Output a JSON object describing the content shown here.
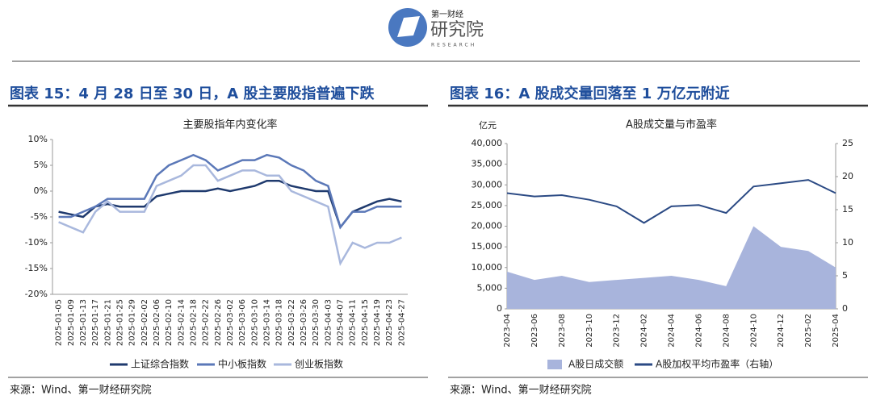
{
  "header": {
    "logo_top": "第一财经",
    "logo_main": "研究院",
    "logo_sub": "RESEARCH"
  },
  "chart_data": [
    {
      "type": "line",
      "caption": "图表 15：4 月 28 日至 30 日，A 股主要股指普遍下跌",
      "title": "主要股指年内变化率",
      "source": "来源：Wind、第一财经研究院",
      "categories": [
        "2025-01-05",
        "2025-01-09",
        "2025-01-13",
        "2025-01-17",
        "2025-01-21",
        "2025-01-25",
        "2025-01-29",
        "2025-02-02",
        "2025-02-06",
        "2025-02-10",
        "2025-02-14",
        "2025-02-18",
        "2025-02-22",
        "2025-02-26",
        "2025-03-02",
        "2025-03-06",
        "2025-03-10",
        "2025-03-14",
        "2025-03-18",
        "2025-03-22",
        "2025-03-26",
        "2025-03-30",
        "2025-04-03",
        "2025-04-07",
        "2025-04-11",
        "2025-04-15",
        "2025-04-19",
        "2025-04-23",
        "2025-04-27"
      ],
      "series": [
        {
          "name": "上证综合指数",
          "color": "#1f3a6e",
          "values": [
            -4,
            -4.5,
            -5,
            -3,
            -2.5,
            -3,
            -3,
            -3,
            -1,
            -0.5,
            0,
            0,
            0,
            0.5,
            0,
            0.5,
            1,
            2,
            2,
            1,
            0.5,
            0,
            0,
            -7,
            -4,
            -3,
            -2,
            -1.5,
            -2
          ]
        },
        {
          "name": "中小板指数",
          "color": "#5b78b8",
          "values": [
            -5,
            -5,
            -4,
            -3,
            -1.5,
            -1.5,
            -1.5,
            -1.5,
            3,
            5,
            6,
            7,
            6,
            4,
            5,
            6,
            6,
            7,
            6.5,
            5,
            4,
            2,
            1,
            -7,
            -4,
            -4,
            -3,
            -3,
            -3
          ]
        },
        {
          "name": "创业板指数",
          "color": "#a9b8dd",
          "values": [
            -6,
            -7,
            -8,
            -4,
            -2,
            -4,
            -4,
            -4,
            1,
            2,
            3,
            5,
            5,
            2,
            3,
            4,
            4,
            3,
            3,
            0,
            -1,
            -2,
            -3,
            -14,
            -10,
            -11,
            -10,
            -10,
            -9
          ]
        }
      ],
      "ylim": [
        -20,
        10
      ],
      "yticks": [
        {
          "value": -20,
          "label": "-20%"
        },
        {
          "value": -15,
          "label": "-15%"
        },
        {
          "value": -10,
          "label": "-10%"
        },
        {
          "value": -5,
          "label": "-5%"
        },
        {
          "value": 0,
          "label": "0%"
        },
        {
          "value": 5,
          "label": "5%"
        },
        {
          "value": 10,
          "label": "10%"
        }
      ]
    },
    {
      "type": "combo",
      "caption": "图表 16：A 股成交量回落至 1 万亿元附近",
      "title": "A股成交量与市盈率",
      "source": "来源：Wind、第一财经研究院",
      "y_label": "亿元",
      "categories": [
        "2023-04",
        "2023-06",
        "2023-08",
        "2023-10",
        "2023-12",
        "2024-02",
        "2024-04",
        "2024-06",
        "2024-08",
        "2024-10",
        "2024-12",
        "2025-02",
        "2025-04"
      ],
      "series": [
        {
          "name": "A股日成交额",
          "color": "#a8b4dc",
          "style": "area",
          "values": [
            9000,
            7000,
            8000,
            6500,
            7000,
            7500,
            8000,
            7000,
            5500,
            20000,
            15000,
            14000,
            10000
          ]
        },
        {
          "name": "A股加权平均市盈率（右轴）",
          "color": "#2b4a84",
          "style": "line",
          "axis": "y2",
          "values": [
            17.5,
            17,
            17.2,
            16.5,
            15.5,
            13,
            15.5,
            15.7,
            14.5,
            18.5,
            19,
            19.5,
            17.5
          ]
        }
      ],
      "ylim": [
        0,
        40000
      ],
      "yticks": [
        {
          "value": 0,
          "label": "0"
        },
        {
          "value": 5000,
          "label": "5,000"
        },
        {
          "value": 10000,
          "label": "10,000"
        },
        {
          "value": 15000,
          "label": "15,000"
        },
        {
          "value": 20000,
          "label": "20,000"
        },
        {
          "value": 25000,
          "label": "25,000"
        },
        {
          "value": 30000,
          "label": "30,000"
        },
        {
          "value": 35000,
          "label": "35,000"
        },
        {
          "value": 40000,
          "label": "40,000"
        }
      ],
      "y2lim": [
        0,
        25
      ],
      "y2ticks": [
        0,
        5,
        10,
        15,
        20,
        25
      ]
    }
  ]
}
